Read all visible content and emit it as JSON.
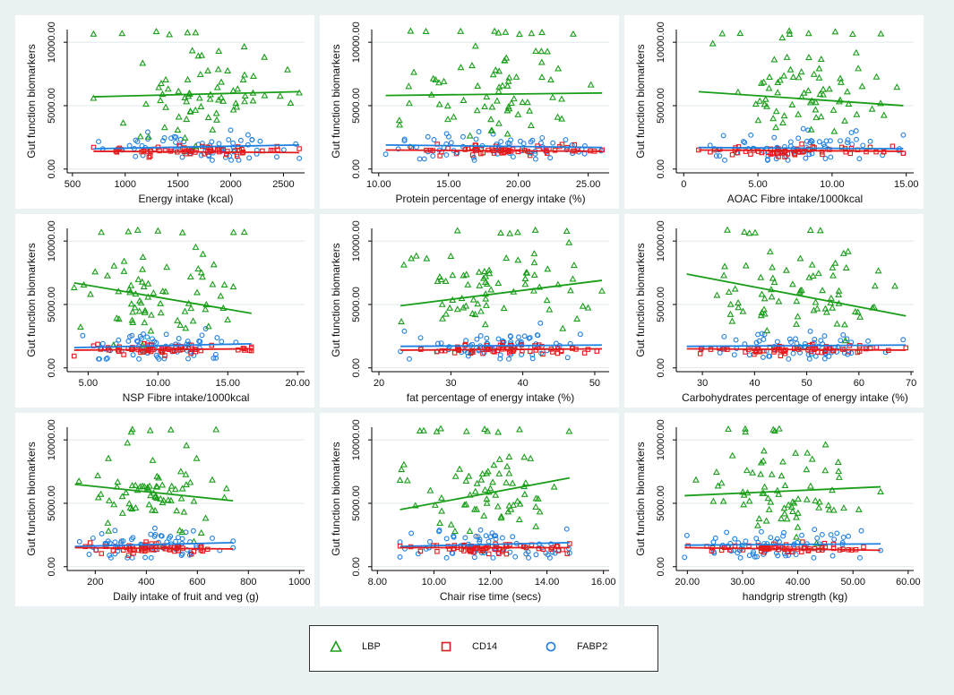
{
  "chart_data": {
    "type": "scatter",
    "ylabel": "Gut function biomarkers",
    "legend": [
      {
        "name": "LBP",
        "color": "#1a9e1a",
        "marker": "triangle"
      },
      {
        "name": "CD14",
        "color": "#e31a1c",
        "marker": "square"
      },
      {
        "name": "FABP2",
        "color": "#1f7fe0",
        "marker": "circle"
      }
    ],
    "panels": [
      {
        "xlabel": "Energy intake (kcal)",
        "xticks": [
          "500",
          "1000",
          "1500",
          "2000",
          "2500"
        ],
        "xtick_values": [
          500,
          1000,
          1500,
          2000,
          2500
        ],
        "xlim": [
          450,
          2700
        ],
        "ylim": [
          -300,
          11000
        ],
        "yticks": [
          "0.00",
          "5000.00",
          "10000.00"
        ],
        "ytick_values": [
          0,
          5000,
          10000
        ],
        "x_range": [
          700,
          2650
        ],
        "fit": {
          "LBP": [
            5700,
            6100
          ],
          "CD14": [
            1400,
            1300
          ],
          "FABP2": [
            1600,
            1900
          ]
        }
      },
      {
        "xlabel": "Protein percentage of energy intake (%)",
        "xticks": [
          "10.00",
          "15.00",
          "20.00",
          "25.00"
        ],
        "xtick_values": [
          10,
          15,
          20,
          25
        ],
        "xlim": [
          9.5,
          26.5
        ],
        "ylim": [
          -300,
          11000
        ],
        "yticks": [
          "0.00",
          "5000.00",
          "10000.00"
        ],
        "ytick_values": [
          0,
          5000,
          10000
        ],
        "x_range": [
          10.5,
          26
        ],
        "fit": {
          "LBP": [
            5800,
            6000
          ],
          "CD14": [
            1500,
            1400
          ],
          "FABP2": [
            1900,
            1700
          ]
        }
      },
      {
        "xlabel": "AOAC Fibre intake/1000kcal",
        "xticks": [
          "0",
          "5.00",
          "10.00",
          "15.00"
        ],
        "xtick_values": [
          0,
          5,
          10,
          15
        ],
        "xlim": [
          -0.5,
          15.5
        ],
        "ylim": [
          -300,
          11000
        ],
        "yticks": [
          "0.00",
          "5000.00",
          "10000.00"
        ],
        "ytick_values": [
          0,
          5000,
          10000
        ],
        "x_range": [
          1,
          14.8
        ],
        "fit": {
          "LBP": [
            6100,
            5000
          ],
          "CD14": [
            1500,
            1400
          ],
          "FABP2": [
            1700,
            1600
          ]
        }
      },
      {
        "xlabel": "NSP Fibre intake/1000kcal",
        "xticks": [
          "5.00",
          "10.00",
          "15.00",
          "20.00"
        ],
        "xtick_values": [
          5,
          10,
          15,
          20
        ],
        "xlim": [
          3.5,
          20.5
        ],
        "ylim": [
          -300,
          11000
        ],
        "yticks": [
          "0.00",
          "5000.00",
          "10000.00"
        ],
        "ytick_values": [
          0,
          5000,
          10000
        ],
        "x_range": [
          4,
          16.7
        ],
        "fit": {
          "LBP": [
            6700,
            4300
          ],
          "CD14": [
            1400,
            1500
          ],
          "FABP2": [
            1600,
            1900
          ]
        }
      },
      {
        "xlabel": "fat percentage of energy intake (%)",
        "xticks": [
          "20",
          "30",
          "40",
          "50"
        ],
        "xtick_values": [
          20,
          30,
          40,
          50
        ],
        "xlim": [
          19,
          52
        ],
        "ylim": [
          -300,
          11000
        ],
        "yticks": [
          "0.00",
          "5000.00",
          "10000.00"
        ],
        "ytick_values": [
          0,
          5000,
          10000
        ],
        "x_range": [
          23,
          51
        ],
        "fit": {
          "LBP": [
            4900,
            6900
          ],
          "CD14": [
            1400,
            1500
          ],
          "FABP2": [
            1700,
            1800
          ]
        }
      },
      {
        "xlabel": "Carbohydrates percentage of energy intake (%)",
        "xticks": [
          "30",
          "40",
          "50",
          "60",
          "70"
        ],
        "xtick_values": [
          30,
          40,
          50,
          60,
          70
        ],
        "xlim": [
          25,
          70.5
        ],
        "ylim": [
          -300,
          11000
        ],
        "yticks": [
          "0.00",
          "5000.00",
          "10000.00"
        ],
        "ytick_values": [
          0,
          5000,
          10000
        ],
        "x_range": [
          27,
          69
        ],
        "fit": {
          "LBP": [
            7400,
            4100
          ],
          "CD14": [
            1500,
            1400
          ],
          "FABP2": [
            1700,
            1800
          ]
        }
      },
      {
        "xlabel": "Daily intake of fruit and veg (g)",
        "xticks": [
          "200",
          "400",
          "600",
          "800",
          "1000"
        ],
        "xtick_values": [
          200,
          400,
          600,
          800,
          1000
        ],
        "xlim": [
          90,
          1020
        ],
        "ylim": [
          -300,
          11000
        ],
        "yticks": [
          "0.00",
          "5000.00",
          "10000.00"
        ],
        "ytick_values": [
          0,
          5000,
          10000
        ],
        "x_range": [
          120,
          740
        ],
        "fit": {
          "LBP": [
            6500,
            5200
          ],
          "CD14": [
            1500,
            1400
          ],
          "FABP2": [
            1600,
            1900
          ]
        }
      },
      {
        "xlabel": "Chair rise time (secs)",
        "xticks": [
          "8.00",
          "10.00",
          "12.00",
          "14.00",
          "16.00"
        ],
        "xtick_values": [
          8,
          10,
          12,
          14,
          16
        ],
        "xlim": [
          7.8,
          16.2
        ],
        "ylim": [
          -300,
          11000
        ],
        "yticks": [
          "0.00",
          "5000.00",
          "10000.00"
        ],
        "ytick_values": [
          0,
          5000,
          10000
        ],
        "x_range": [
          8.8,
          14.8
        ],
        "fit": {
          "LBP": [
            4500,
            7000
          ],
          "CD14": [
            1500,
            1500
          ],
          "FABP2": [
            1600,
            1900
          ]
        }
      },
      {
        "xlabel": "handgrip strength (kg)",
        "xticks": [
          "20.00",
          "30.00",
          "40.00",
          "50.00",
          "60.00"
        ],
        "xtick_values": [
          20,
          30,
          40,
          50,
          60
        ],
        "xlim": [
          18,
          61
        ],
        "ylim": [
          -300,
          11000
        ],
        "yticks": [
          "0.00",
          "5000.00",
          "10000.00"
        ],
        "ytick_values": [
          0,
          5000,
          10000
        ],
        "x_range": [
          19.5,
          55
        ],
        "fit": {
          "LBP": [
            5600,
            6300
          ],
          "CD14": [
            1500,
            1300
          ],
          "FABP2": [
            1700,
            1800
          ]
        }
      }
    ]
  }
}
